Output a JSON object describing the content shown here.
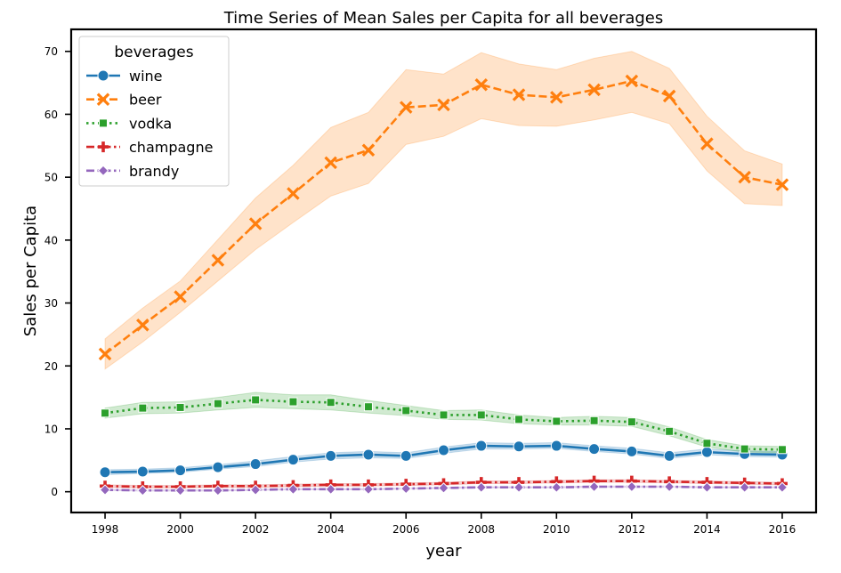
{
  "chart_data": {
    "type": "line",
    "title": "Time Series of Mean Sales per Capita for all beverages",
    "xlabel": "year",
    "ylabel": "Sales per Capita",
    "xlim": [
      1997.1,
      2016.9
    ],
    "ylim": [
      -3.3,
      73.5
    ],
    "xticks": [
      1998,
      2000,
      2002,
      2004,
      2006,
      2008,
      2010,
      2012,
      2014,
      2016
    ],
    "yticks": [
      0,
      10,
      20,
      30,
      40,
      50,
      60,
      70
    ],
    "grid": false,
    "legend": {
      "title": "beverages",
      "position": "top-left"
    },
    "x": [
      1998,
      1999,
      2000,
      2001,
      2002,
      2003,
      2004,
      2005,
      2006,
      2007,
      2008,
      2009,
      2010,
      2011,
      2012,
      2013,
      2014,
      2015,
      2016
    ],
    "series": [
      {
        "name": "wine",
        "color": "#1f77b4",
        "dash": "solid",
        "marker": "circle",
        "values": [
          3.1,
          3.2,
          3.4,
          3.9,
          4.4,
          5.1,
          5.7,
          5.9,
          5.7,
          6.6,
          7.3,
          7.2,
          7.3,
          6.8,
          6.4,
          5.7,
          6.3,
          6.0,
          5.9
        ],
        "lower": [
          2.7,
          2.9,
          3.1,
          3.6,
          4.0,
          4.7,
          5.2,
          5.4,
          5.3,
          6.1,
          6.8,
          6.8,
          6.9,
          6.4,
          6.0,
          5.3,
          5.9,
          5.6,
          5.5
        ],
        "upper": [
          3.5,
          3.6,
          3.8,
          4.3,
          4.9,
          5.6,
          6.2,
          6.4,
          6.2,
          7.1,
          7.8,
          7.7,
          7.8,
          7.3,
          6.9,
          6.2,
          6.8,
          6.5,
          6.4
        ]
      },
      {
        "name": "beer",
        "color": "#ff7f0e",
        "dash": "dashed",
        "marker": "x",
        "values": [
          21.9,
          26.5,
          31.0,
          36.8,
          42.6,
          47.4,
          52.3,
          54.3,
          61.1,
          61.5,
          64.7,
          63.1,
          62.7,
          63.9,
          65.3,
          62.9,
          55.3,
          50.0,
          48.8
        ],
        "lower": [
          19.5,
          23.8,
          28.5,
          33.5,
          38.5,
          42.8,
          47.0,
          49.0,
          55.2,
          56.5,
          59.3,
          58.2,
          58.1,
          59.1,
          60.3,
          58.5,
          51.0,
          45.8,
          45.5
        ],
        "upper": [
          24.3,
          29.2,
          33.5,
          40.1,
          46.7,
          51.9,
          57.9,
          60.3,
          67.1,
          66.4,
          69.8,
          68.0,
          67.1,
          68.9,
          70.0,
          67.3,
          59.7,
          54.2,
          52.1
        ]
      },
      {
        "name": "vodka",
        "color": "#2ca02c",
        "dash": "dotted",
        "marker": "square",
        "values": [
          12.5,
          13.3,
          13.4,
          14.0,
          14.6,
          14.3,
          14.2,
          13.5,
          12.9,
          12.2,
          12.2,
          11.5,
          11.2,
          11.3,
          11.1,
          9.6,
          7.7,
          6.8,
          6.7
        ],
        "lower": [
          11.7,
          12.4,
          12.5,
          13.0,
          13.4,
          13.2,
          13.0,
          12.5,
          12.1,
          11.5,
          11.4,
          10.8,
          10.6,
          10.6,
          10.4,
          8.9,
          7.1,
          6.3,
          6.2
        ],
        "upper": [
          13.3,
          14.2,
          14.3,
          15.0,
          15.8,
          15.4,
          15.4,
          14.5,
          13.7,
          12.9,
          13.0,
          12.2,
          11.8,
          12.0,
          11.8,
          10.3,
          8.3,
          7.3,
          7.2
        ]
      },
      {
        "name": "champagne",
        "color": "#d62728",
        "dash": "dashdot",
        "marker": "plus",
        "values": [
          0.9,
          0.8,
          0.8,
          0.9,
          0.9,
          1.0,
          1.1,
          1.1,
          1.2,
          1.3,
          1.5,
          1.5,
          1.6,
          1.7,
          1.7,
          1.6,
          1.5,
          1.4,
          1.3
        ],
        "lower": [
          0.7,
          0.6,
          0.6,
          0.7,
          0.7,
          0.8,
          0.9,
          0.9,
          1.0,
          1.1,
          1.3,
          1.3,
          1.4,
          1.5,
          1.5,
          1.4,
          1.3,
          1.2,
          1.1
        ],
        "upper": [
          1.1,
          1.0,
          1.0,
          1.1,
          1.1,
          1.2,
          1.3,
          1.3,
          1.4,
          1.5,
          1.7,
          1.7,
          1.8,
          1.9,
          1.9,
          1.8,
          1.7,
          1.6,
          1.5
        ]
      },
      {
        "name": "brandy",
        "color": "#9467bd",
        "dash": "dashdot",
        "marker": "diamond",
        "values": [
          0.3,
          0.2,
          0.2,
          0.2,
          0.3,
          0.4,
          0.4,
          0.4,
          0.5,
          0.6,
          0.7,
          0.7,
          0.7,
          0.8,
          0.8,
          0.8,
          0.7,
          0.7,
          0.7
        ],
        "lower": [
          0.2,
          0.1,
          0.1,
          0.1,
          0.2,
          0.3,
          0.3,
          0.3,
          0.4,
          0.5,
          0.6,
          0.6,
          0.6,
          0.7,
          0.7,
          0.7,
          0.6,
          0.6,
          0.6
        ],
        "upper": [
          0.4,
          0.3,
          0.3,
          0.3,
          0.4,
          0.5,
          0.5,
          0.5,
          0.6,
          0.7,
          0.8,
          0.8,
          0.8,
          0.9,
          0.9,
          0.9,
          0.8,
          0.8,
          0.8
        ]
      }
    ]
  }
}
